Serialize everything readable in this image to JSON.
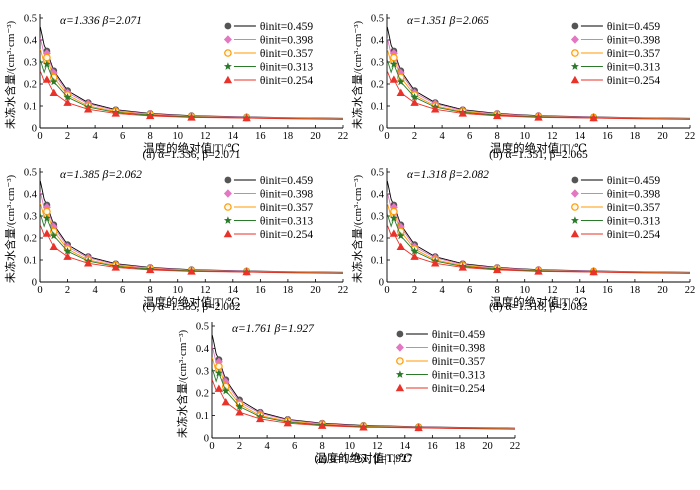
{
  "chart_data": [
    {
      "type": "scatter",
      "panel_label": "(a)",
      "param_text": "α=1.336  β=2.071",
      "caption": "(a) α=1.336, β=2.071",
      "xlabel": "温度的绝对值|T|/℃",
      "ylabel": "未冻水含量/(cm³·cm⁻³)",
      "xlim": [
        0,
        22
      ],
      "ylim": [
        0,
        0.5
      ],
      "xticks": [
        0,
        2,
        4,
        6,
        8,
        10,
        12,
        14,
        16,
        18,
        20,
        22
      ],
      "yticks": [
        0,
        0.1,
        0.2,
        0.3,
        0.4,
        0.5
      ],
      "alpha": 1.336,
      "beta": 2.071,
      "x": [
        0.5,
        1.0,
        2.0,
        3.5,
        5.5,
        8.0,
        11.0,
        15.0
      ],
      "series": [
        {
          "name": "θinit=0.459",
          "values": [
            0.35,
            0.26,
            0.17,
            0.115,
            0.083,
            0.066,
            0.056,
            0.05
          ]
        },
        {
          "name": "θinit=0.398",
          "values": [
            0.34,
            0.25,
            0.16,
            0.11,
            0.08,
            0.064,
            0.054,
            0.049
          ]
        },
        {
          "name": "θinit=0.357",
          "values": [
            0.32,
            0.23,
            0.15,
            0.1,
            0.075,
            0.061,
            0.052,
            0.047
          ]
        },
        {
          "name": "θinit=0.313",
          "values": [
            0.29,
            0.21,
            0.14,
            0.095,
            0.071,
            0.058,
            0.05,
            0.046
          ]
        },
        {
          "name": "θinit=0.254",
          "values": [
            0.22,
            0.16,
            0.115,
            0.085,
            0.066,
            0.055,
            0.048,
            0.045
          ]
        }
      ]
    },
    {
      "type": "scatter",
      "panel_label": "(b)",
      "param_text": "α=1.351  β=2.065",
      "caption": "(b) α=1.351, β=2.065",
      "xlabel": "温度的绝对值|T|/℃",
      "ylabel": "未冻水含量/(cm³·cm⁻³)",
      "xlim": [
        0,
        22
      ],
      "ylim": [
        0,
        0.5
      ],
      "xticks": [
        0,
        2,
        4,
        6,
        8,
        10,
        12,
        14,
        16,
        18,
        20,
        22
      ],
      "yticks": [
        0,
        0.1,
        0.2,
        0.3,
        0.4,
        0.5
      ],
      "alpha": 1.351,
      "beta": 2.065,
      "x": [
        0.5,
        1.0,
        2.0,
        3.5,
        5.5,
        8.0,
        11.0,
        15.0
      ],
      "series": [
        {
          "name": "θinit=0.459",
          "values": [
            0.35,
            0.26,
            0.17,
            0.115,
            0.083,
            0.066,
            0.056,
            0.05
          ]
        },
        {
          "name": "θinit=0.398",
          "values": [
            0.34,
            0.25,
            0.16,
            0.11,
            0.08,
            0.064,
            0.054,
            0.049
          ]
        },
        {
          "name": "θinit=0.357",
          "values": [
            0.32,
            0.23,
            0.15,
            0.1,
            0.075,
            0.061,
            0.052,
            0.047
          ]
        },
        {
          "name": "θinit=0.313",
          "values": [
            0.29,
            0.21,
            0.14,
            0.095,
            0.071,
            0.058,
            0.05,
            0.046
          ]
        },
        {
          "name": "θinit=0.254",
          "values": [
            0.22,
            0.16,
            0.115,
            0.085,
            0.066,
            0.055,
            0.048,
            0.045
          ]
        }
      ]
    },
    {
      "type": "scatter",
      "panel_label": "(c)",
      "param_text": "α=1.385  β=2.062",
      "caption": "(c) α=1.385, β=2.062",
      "xlabel": "温度的绝对值|T|/℃",
      "ylabel": "未冻水含量/(cm³·cm⁻³)",
      "xlim": [
        0,
        22
      ],
      "ylim": [
        0,
        0.5
      ],
      "xticks": [
        0,
        2,
        4,
        6,
        8,
        10,
        12,
        14,
        16,
        18,
        20,
        22
      ],
      "yticks": [
        0,
        0.1,
        0.2,
        0.3,
        0.4,
        0.5
      ],
      "alpha": 1.385,
      "beta": 2.062,
      "x": [
        0.5,
        1.0,
        2.0,
        3.5,
        5.5,
        8.0,
        11.0,
        15.0
      ],
      "series": [
        {
          "name": "θinit=0.459",
          "values": [
            0.35,
            0.26,
            0.17,
            0.115,
            0.083,
            0.066,
            0.056,
            0.05
          ]
        },
        {
          "name": "θinit=0.398",
          "values": [
            0.34,
            0.25,
            0.16,
            0.11,
            0.08,
            0.064,
            0.054,
            0.049
          ]
        },
        {
          "name": "θinit=0.357",
          "values": [
            0.32,
            0.23,
            0.15,
            0.1,
            0.075,
            0.061,
            0.052,
            0.047
          ]
        },
        {
          "name": "θinit=0.313",
          "values": [
            0.29,
            0.21,
            0.14,
            0.095,
            0.071,
            0.058,
            0.05,
            0.046
          ]
        },
        {
          "name": "θinit=0.254",
          "values": [
            0.22,
            0.16,
            0.115,
            0.085,
            0.066,
            0.055,
            0.048,
            0.045
          ]
        }
      ]
    },
    {
      "type": "scatter",
      "panel_label": "(d)",
      "param_text": "α=1.318  β=2.082",
      "caption": "(d) α=1.318, β=2.082",
      "xlabel": "温度的绝对值|T|/℃",
      "ylabel": "未冻水含量/(cm³·cm⁻³)",
      "xlim": [
        0,
        22
      ],
      "ylim": [
        0,
        0.5
      ],
      "xticks": [
        0,
        2,
        4,
        6,
        8,
        10,
        12,
        14,
        16,
        18,
        20,
        22
      ],
      "yticks": [
        0,
        0.1,
        0.2,
        0.3,
        0.4,
        0.5
      ],
      "alpha": 1.318,
      "beta": 2.082,
      "x": [
        0.5,
        1.0,
        2.0,
        3.5,
        5.5,
        8.0,
        11.0,
        15.0
      ],
      "series": [
        {
          "name": "θinit=0.459",
          "values": [
            0.35,
            0.26,
            0.17,
            0.115,
            0.083,
            0.066,
            0.056,
            0.05
          ]
        },
        {
          "name": "θinit=0.398",
          "values": [
            0.34,
            0.25,
            0.16,
            0.11,
            0.08,
            0.064,
            0.054,
            0.049
          ]
        },
        {
          "name": "θinit=0.357",
          "values": [
            0.32,
            0.23,
            0.15,
            0.1,
            0.075,
            0.061,
            0.052,
            0.047
          ]
        },
        {
          "name": "θinit=0.313",
          "values": [
            0.29,
            0.21,
            0.14,
            0.095,
            0.071,
            0.058,
            0.05,
            0.046
          ]
        },
        {
          "name": "θinit=0.254",
          "values": [
            0.22,
            0.16,
            0.115,
            0.085,
            0.066,
            0.055,
            0.048,
            0.045
          ]
        }
      ]
    },
    {
      "type": "scatter",
      "panel_label": "(e)",
      "param_text": "α=1.761  β=1.927",
      "caption": "(e) α=1.761, β=1.927",
      "xlabel": "温度的绝对值|T|/℃",
      "ylabel": "未冻水含量/(cm³·cm⁻³)",
      "xlim": [
        0,
        22
      ],
      "ylim": [
        0,
        0.5
      ],
      "xticks": [
        0,
        2,
        4,
        6,
        8,
        10,
        12,
        14,
        16,
        18,
        20,
        22
      ],
      "yticks": [
        0,
        0.1,
        0.2,
        0.3,
        0.4,
        0.5
      ],
      "alpha": 1.761,
      "beta": 1.927,
      "x": [
        0.5,
        1.0,
        2.0,
        3.5,
        5.5,
        8.0,
        11.0,
        15.0
      ],
      "series": [
        {
          "name": "θinit=0.459",
          "values": [
            0.35,
            0.26,
            0.17,
            0.115,
            0.083,
            0.066,
            0.056,
            0.05
          ]
        },
        {
          "name": "θinit=0.398",
          "values": [
            0.34,
            0.25,
            0.16,
            0.11,
            0.08,
            0.064,
            0.054,
            0.049
          ]
        },
        {
          "name": "θinit=0.357",
          "values": [
            0.32,
            0.23,
            0.15,
            0.1,
            0.075,
            0.061,
            0.052,
            0.047
          ]
        },
        {
          "name": "θinit=0.313",
          "values": [
            0.29,
            0.21,
            0.14,
            0.095,
            0.071,
            0.058,
            0.05,
            0.046
          ]
        },
        {
          "name": "θinit=0.254",
          "values": [
            0.22,
            0.16,
            0.115,
            0.085,
            0.066,
            0.055,
            0.048,
            0.045
          ]
        }
      ]
    }
  ],
  "series_styles": [
    {
      "color": "#555555",
      "marker": "circle",
      "line_color": "#000000"
    },
    {
      "color": "#e377c2",
      "marker": "diamond",
      "line_color": "#e377c2"
    },
    {
      "color": "#ff9900",
      "marker": "open-circle",
      "line_color": "#ff9900"
    },
    {
      "color": "#2a7a2a",
      "marker": "star",
      "line_color": "#2a7a2a"
    },
    {
      "color": "#e8322a",
      "marker": "triangle",
      "line_color": "#e8322a"
    }
  ]
}
